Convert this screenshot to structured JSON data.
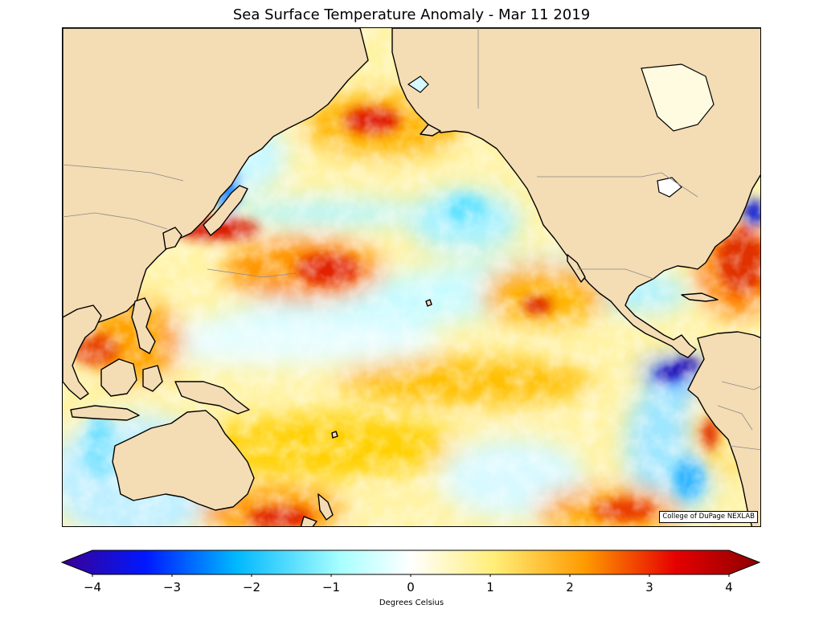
{
  "title": "Sea Surface Temperature Anomaly - Mar 11 2019",
  "credit": "College of DuPage NEXLAB",
  "colorbar": {
    "label": "Degrees Celsius",
    "ticks": [
      "−4",
      "−3",
      "−2",
      "−1",
      "0",
      "1",
      "2",
      "3",
      "4"
    ],
    "range": [
      -4,
      4
    ],
    "colors": {
      "min": "#3b0091",
      "cold": "#0018ff",
      "cool": "#00b8ff",
      "light_cool": "#a8ffff",
      "neutral": "#ffffff",
      "light_warm": "#ffee77",
      "warm": "#ff9a00",
      "hot": "#e60000",
      "max": "#8c0000"
    }
  },
  "map": {
    "land_color": "#f4dcb4",
    "coast_color": "#000000",
    "border_color": "#8a8a8a"
  }
}
